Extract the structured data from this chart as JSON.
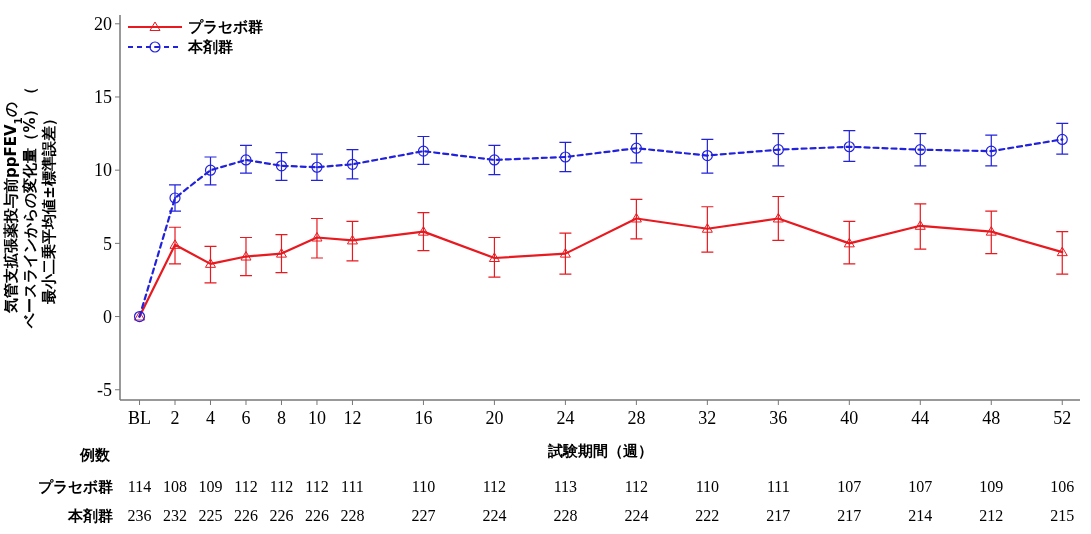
{
  "chart_data": {
    "type": "line",
    "xlabel": "試験期間（週）",
    "ylabel": "気管支拡張薬投与前ppFEV$_{1}$のベースラインからの変化量（%）（最小二乗平均値±標準誤差）",
    "x": [
      0,
      2,
      4,
      6,
      8,
      10,
      12,
      16,
      20,
      24,
      28,
      32,
      36,
      40,
      44,
      48,
      52
    ],
    "xlim": [
      -1.1,
      53
    ],
    "xticks": [
      {
        "value": 0,
        "label": "BL"
      },
      2,
      4,
      6,
      8,
      10,
      12,
      16,
      20,
      24,
      28,
      32,
      36,
      40,
      44,
      48,
      52
    ],
    "ylim": [
      -5.7,
      20.6
    ],
    "yticks": [
      -5,
      0,
      5,
      10,
      15,
      20
    ],
    "legend": "top left",
    "grid": false,
    "series": [
      {
        "name": "プラセボ群",
        "color": "#e8191f",
        "marker": "triangle",
        "line_style": "solid",
        "values": [
          0,
          4.9,
          3.6,
          4.1,
          4.3,
          5.4,
          5.2,
          5.8,
          4.0,
          4.3,
          6.7,
          6.0,
          6.7,
          5.0,
          6.2,
          5.8,
          4.4
        ],
        "errors": [
          null,
          [
            3.6,
            6.1
          ],
          [
            2.3,
            4.8
          ],
          [
            2.8,
            5.4
          ],
          [
            3.0,
            5.6
          ],
          [
            4.0,
            6.7
          ],
          [
            3.8,
            6.5
          ],
          [
            4.5,
            7.1
          ],
          [
            2.7,
            5.4
          ],
          [
            2.9,
            5.7
          ],
          [
            5.3,
            8.0
          ],
          [
            4.4,
            7.5
          ],
          [
            5.2,
            8.2
          ],
          [
            3.6,
            6.5
          ],
          [
            4.6,
            7.7
          ],
          [
            4.3,
            7.2
          ],
          [
            2.9,
            5.8
          ]
        ]
      },
      {
        "name": "本剤群",
        "color": "#2222dd",
        "marker": "circle",
        "line_style": "dashed",
        "values": [
          0,
          8.1,
          10.0,
          10.7,
          10.3,
          10.2,
          10.4,
          11.3,
          10.7,
          10.9,
          11.5,
          11.0,
          11.4,
          11.6,
          11.4,
          11.3,
          12.1
        ],
        "errors": [
          null,
          [
            7.2,
            9.0
          ],
          [
            9.0,
            10.9
          ],
          [
            9.8,
            11.7
          ],
          [
            9.3,
            11.2
          ],
          [
            9.3,
            11.1
          ],
          [
            9.4,
            11.4
          ],
          [
            10.4,
            12.3
          ],
          [
            9.7,
            11.7
          ],
          [
            9.9,
            11.9
          ],
          [
            10.5,
            12.5
          ],
          [
            9.8,
            12.1
          ],
          [
            10.3,
            12.5
          ],
          [
            10.6,
            12.7
          ],
          [
            10.3,
            12.5
          ],
          [
            10.3,
            12.4
          ],
          [
            11.1,
            13.2
          ]
        ]
      }
    ],
    "annotations": [
      "例数",
      "プラセボ群",
      "114",
      "108",
      "109",
      "112",
      "112",
      "112",
      "111",
      "110",
      "112",
      "113",
      "112",
      "110",
      "111",
      "107",
      "107",
      "109",
      "106",
      "本剤群",
      "236",
      "232",
      "225",
      "226",
      "226",
      "226",
      "228",
      "227",
      "224",
      "228",
      "224",
      "222",
      "217",
      "217",
      "214",
      "212",
      "215"
    ]
  }
}
